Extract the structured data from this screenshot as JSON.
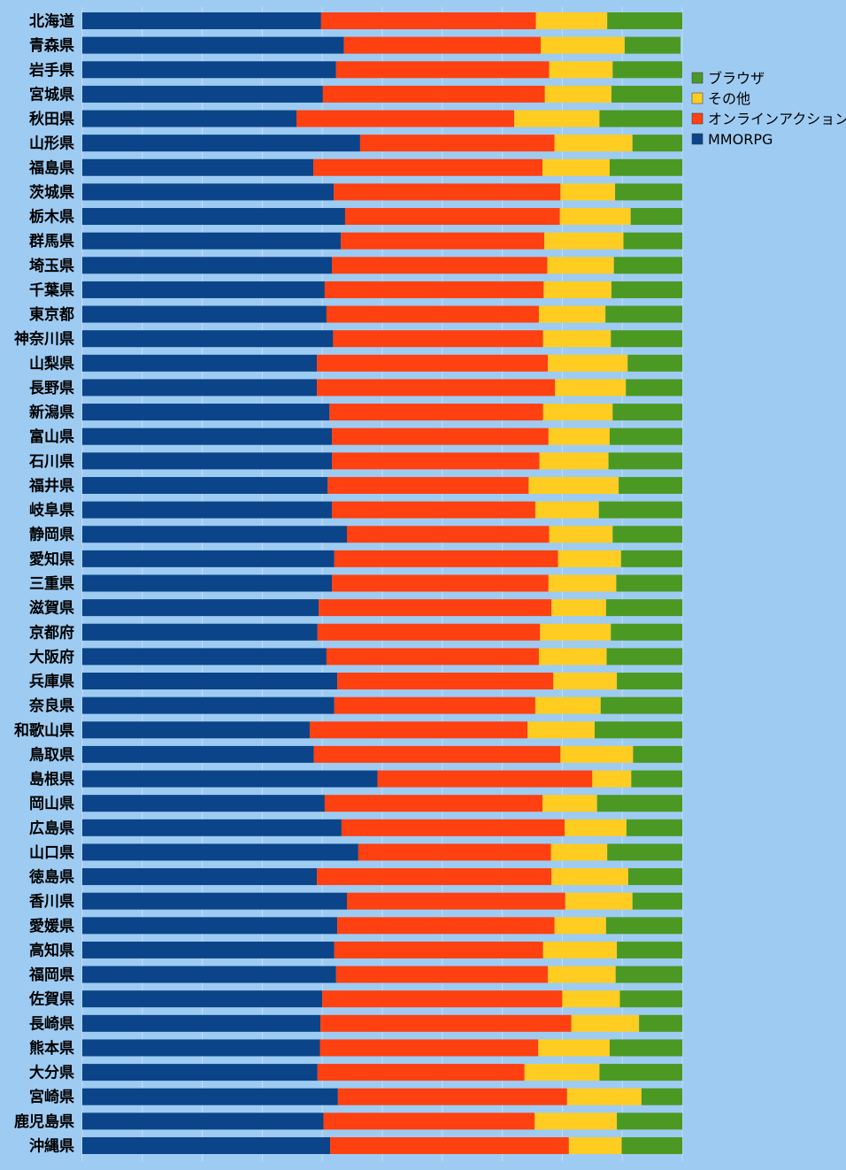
{
  "chart_data": {
    "type": "bar",
    "orientation": "horizontal",
    "stacked": "100%",
    "title": "",
    "xlabel": "",
    "ylabel": "",
    "xlim": [
      0,
      100
    ],
    "grid": true,
    "legend_position": "right",
    "categories": [
      "北海道",
      "青森県",
      "岩手県",
      "宮城県",
      "秋田県",
      "山形県",
      "福島県",
      "茨城県",
      "栃木県",
      "群馬県",
      "埼玉県",
      "千葉県",
      "東京都",
      "神奈川県",
      "山梨県",
      "長野県",
      "新潟県",
      "富山県",
      "石川県",
      "福井県",
      "岐阜県",
      "静岡県",
      "愛知県",
      "三重県",
      "滋賀県",
      "京都府",
      "大阪府",
      "兵庫県",
      "奈良県",
      "和歌山県",
      "鳥取県",
      "島根県",
      "岡山県",
      "広島県",
      "山口県",
      "徳島県",
      "香川県",
      "愛媛県",
      "高知県",
      "福岡県",
      "佐賀県",
      "長崎県",
      "熊本県",
      "大分県",
      "宮崎県",
      "鹿児島県",
      "沖縄県"
    ],
    "series": [
      {
        "name": "MMORPG",
        "color": "#0b4488",
        "values": [
          39.8,
          43.6,
          42.3,
          40.1,
          35.7,
          46.3,
          38.5,
          41.9,
          43.8,
          43.1,
          41.6,
          40.4,
          40.7,
          41.8,
          39.1,
          39.1,
          41.2,
          41.6,
          41.6,
          40.9,
          41.6,
          44.1,
          42.0,
          41.6,
          39.4,
          39.2,
          40.7,
          42.5,
          42.0,
          37.9,
          38.6,
          49.2,
          40.4,
          43.2,
          46.0,
          39.1,
          44.1,
          42.5,
          42.0,
          42.3,
          40.0,
          39.7,
          39.6,
          39.2,
          42.6,
          40.2,
          41.3
        ]
      },
      {
        "name": "オンラインアクション",
        "color": "#ff4010",
        "values": [
          35.8,
          32.8,
          35.5,
          37.0,
          36.3,
          32.4,
          38.2,
          37.8,
          35.8,
          33.9,
          35.9,
          36.5,
          35.4,
          35.0,
          38.5,
          39.7,
          35.6,
          36.1,
          34.6,
          33.5,
          33.9,
          33.7,
          37.3,
          36.1,
          38.8,
          37.1,
          35.4,
          36.0,
          33.5,
          36.3,
          41.1,
          35.8,
          36.3,
          37.2,
          32.1,
          39.1,
          36.4,
          36.2,
          34.8,
          35.3,
          40.0,
          41.8,
          36.4,
          34.5,
          38.2,
          35.2,
          39.8
        ]
      },
      {
        "name": "その他",
        "color": "#ffcc22",
        "values": [
          11.9,
          14.0,
          10.6,
          11.1,
          14.2,
          13.0,
          11.2,
          9.1,
          11.8,
          13.2,
          11.1,
          11.3,
          11.1,
          11.3,
          13.3,
          11.8,
          11.6,
          10.2,
          11.5,
          15.0,
          10.6,
          10.6,
          10.5,
          11.3,
          9.1,
          11.8,
          11.3,
          10.6,
          10.9,
          11.2,
          12.1,
          6.5,
          9.1,
          10.3,
          9.4,
          12.8,
          11.2,
          8.6,
          12.3,
          11.3,
          9.6,
          11.3,
          11.9,
          12.5,
          12.4,
          13.7,
          8.8
        ]
      },
      {
        "name": "ブラウザ",
        "color": "#4b9922",
        "values": [
          12.5,
          9.3,
          11.6,
          11.8,
          13.8,
          8.3,
          12.1,
          11.2,
          8.6,
          9.8,
          11.4,
          11.8,
          12.8,
          11.9,
          9.1,
          9.4,
          11.6,
          12.1,
          12.3,
          10.6,
          13.9,
          11.6,
          10.2,
          11.0,
          12.7,
          11.9,
          12.6,
          10.9,
          13.6,
          14.6,
          8.2,
          8.5,
          14.2,
          9.3,
          12.5,
          9.0,
          8.3,
          12.7,
          10.9,
          11.1,
          10.4,
          7.2,
          12.1,
          13.8,
          6.8,
          10.9,
          10.1
        ]
      }
    ]
  }
}
